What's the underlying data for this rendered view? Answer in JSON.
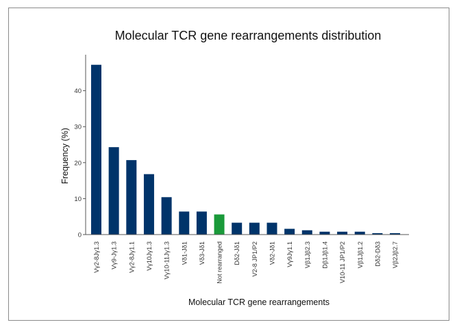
{
  "chart_data": {
    "type": "bar",
    "title": "Molecular TCR gene rearrangements distribution",
    "xlabel": "Molecular TCR gene rearrangements",
    "ylabel": "Frequency (%)",
    "ylim": [
      0,
      50
    ],
    "yticks": [
      0,
      10,
      20,
      30,
      40
    ],
    "grid": false,
    "categories": [
      "Vγ2-8Jγ1.3",
      "Vγ9-Jγ1.3",
      "Vγ2-8Jγ1.1",
      "Vγ10Jγ1.3",
      "Vγ10-11Jγ1.3",
      "Vδ1-Jδ1",
      "Vδ3-Jδ1",
      "Not rearranged",
      "Dδ2-Jδ1",
      "V2-8 JP1/P2",
      "Vδ2-Jδ1",
      "Vγ9Jγ1.1",
      "Vβ1Jβ2.3",
      "Dβ1Jβ1.4",
      "V10-11 JP1/P2",
      "Vβ1Jβ1.2",
      "Dδ2-Dδ3",
      "Vβ2Jβ2.7"
    ],
    "values": [
      47.2,
      24.3,
      20.7,
      16.8,
      10.4,
      6.4,
      6.4,
      5.6,
      3.3,
      3.3,
      3.3,
      1.6,
      1.2,
      0.8,
      0.8,
      0.8,
      0.4,
      0.4
    ],
    "colors": {
      "default": "#00346a",
      "highlight": "#1a9a3a",
      "highlight_category": "Not rearranged"
    }
  }
}
